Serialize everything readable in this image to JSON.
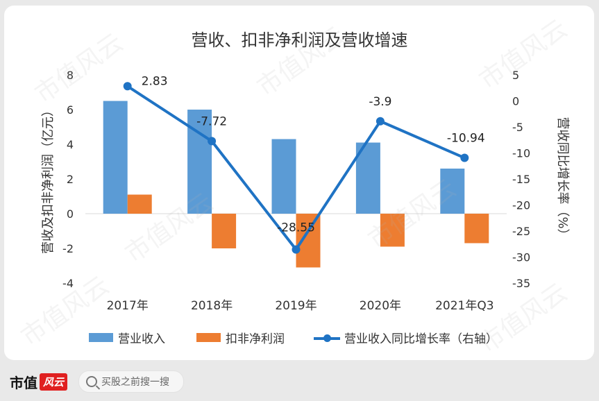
{
  "chart_data": {
    "type": "bar",
    "title": "营收、扣非净利润及营收增速",
    "categories": [
      "2017年",
      "2018年",
      "2019年",
      "2020年",
      "2021年Q3"
    ],
    "series": [
      {
        "name": "营业收入",
        "type": "bar",
        "axis": "left",
        "color": "#5b9bd5",
        "values": [
          6.5,
          6.0,
          4.3,
          4.1,
          2.6
        ]
      },
      {
        "name": "扣非净利润",
        "type": "bar",
        "axis": "left",
        "color": "#ed7d31",
        "values": [
          1.1,
          -2.0,
          -3.1,
          -1.9,
          -1.7
        ]
      },
      {
        "name": "营业收入同比增长率（右轴）",
        "type": "line",
        "axis": "right",
        "color": "#1f73c4",
        "values": [
          2.83,
          -7.72,
          -28.55,
          -3.9,
          -10.94
        ],
        "labels": [
          "2.83",
          "-7.72",
          "-28.55",
          "-3.9",
          "-10.94"
        ]
      }
    ],
    "ylabel_left": "营收及扣非净利润（亿元）",
    "ylabel_right": "营收同比增长率（%）",
    "ylim_left": [
      -4,
      8
    ],
    "yticks_left": [
      "8",
      "6",
      "4",
      "2",
      "0",
      "-2",
      "-4"
    ],
    "ylim_right": [
      -35,
      5
    ],
    "yticks_right": [
      "5",
      "0",
      "-5",
      "-10",
      "-15",
      "-20",
      "-25",
      "-30",
      "-35"
    ],
    "grid": false,
    "legend": "bottom"
  },
  "footer": {
    "logo_text": "市值",
    "logo_badge": "风云",
    "search_placeholder": "买股之前搜一搜"
  },
  "watermark": "市值风云"
}
